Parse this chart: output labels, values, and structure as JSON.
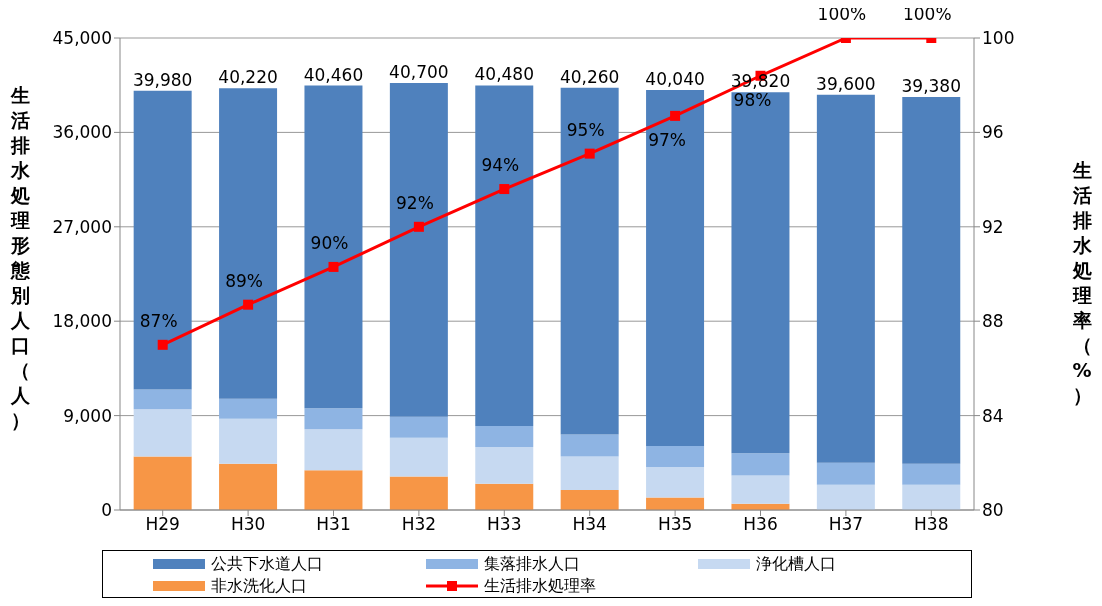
{
  "chart_data": {
    "type": "bar",
    "stacked": true,
    "ylabel": "生活排水処理形態別人口（人）",
    "y2label": "生活排水処理率（%）",
    "categories": [
      "H29",
      "H30",
      "H31",
      "H32",
      "H33",
      "H34",
      "H35",
      "H36",
      "H37",
      "H38"
    ],
    "series": [
      {
        "name": "非水洗化人口",
        "color": "#f79646",
        "values": [
          5100,
          4400,
          3800,
          3200,
          2500,
          1900,
          1200,
          600,
          0,
          0
        ]
      },
      {
        "name": "浄化槽人口",
        "color": "#c6d9f1",
        "values": [
          4500,
          4300,
          3900,
          3700,
          3500,
          3200,
          2900,
          2700,
          2400,
          2400
        ]
      },
      {
        "name": "集落排水人口",
        "color": "#8eb4e3",
        "values": [
          1900,
          1900,
          2000,
          2000,
          2000,
          2100,
          2000,
          2100,
          2100,
          2000
        ]
      },
      {
        "name": "公共下水道人口",
        "color": "#4f81bd",
        "values": [
          28480,
          29620,
          30760,
          31800,
          32480,
          33060,
          33940,
          34420,
          35100,
          34980
        ]
      },
      {
        "name": "生活排水処理率",
        "type": "line",
        "axis": "y2",
        "color": "#ff0000",
        "marker": "square",
        "values": [
          87,
          88.7,
          90.3,
          92,
          93.6,
          95.1,
          96.7,
          98.4,
          100,
          100
        ],
        "value_labels": [
          "87%",
          "89%",
          "90%",
          "92%",
          "94%",
          "95%",
          "97%",
          "98%",
          "100%",
          "100%"
        ]
      }
    ],
    "totals": [
      "39,980",
      "40,220",
      "40,460",
      "40,700",
      "40,480",
      "40,260",
      "40,040",
      "39,820",
      "39,600",
      "39,380"
    ],
    "ylim": [
      0,
      45000
    ],
    "yticks": [
      {
        "value": 0,
        "label": "0"
      },
      {
        "value": 9000,
        "label": "9,000"
      },
      {
        "value": 18000,
        "label": "18,000"
      },
      {
        "value": 27000,
        "label": "27,000"
      },
      {
        "value": 36000,
        "label": "36,000"
      },
      {
        "value": 45000,
        "label": "45,000"
      }
    ],
    "y2lim": [
      80,
      100
    ],
    "y2ticks": [
      80,
      84,
      88,
      92,
      96,
      100
    ],
    "grid": "y",
    "legend": "bottom"
  }
}
